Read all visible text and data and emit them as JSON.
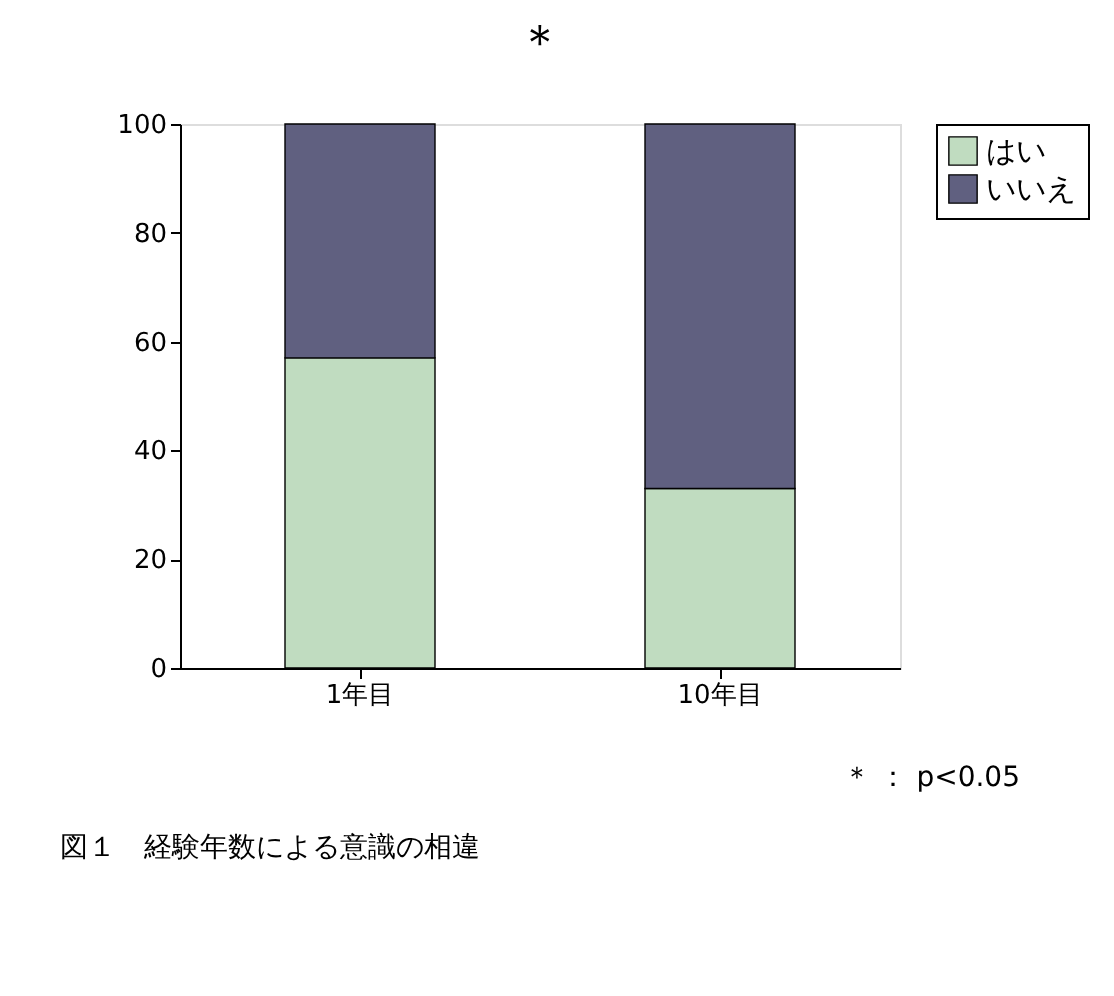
{
  "chart_data": {
    "type": "bar",
    "stacked": true,
    "categories": [
      "1年目",
      "10年目"
    ],
    "series": [
      {
        "name": "はい",
        "color": "#c0dcc0",
        "values": [
          57,
          33
        ]
      },
      {
        "name": "いいえ",
        "color": "#606080",
        "values": [
          43,
          67
        ]
      }
    ],
    "ylim": [
      0,
      100
    ],
    "yticks": [
      0,
      20,
      40,
      60,
      80,
      100
    ],
    "grid": false,
    "legend": "right",
    "annotations": [
      "＊",
      "＊ ： p<0.05",
      "図１　経験年数による意識の相違"
    ]
  }
}
